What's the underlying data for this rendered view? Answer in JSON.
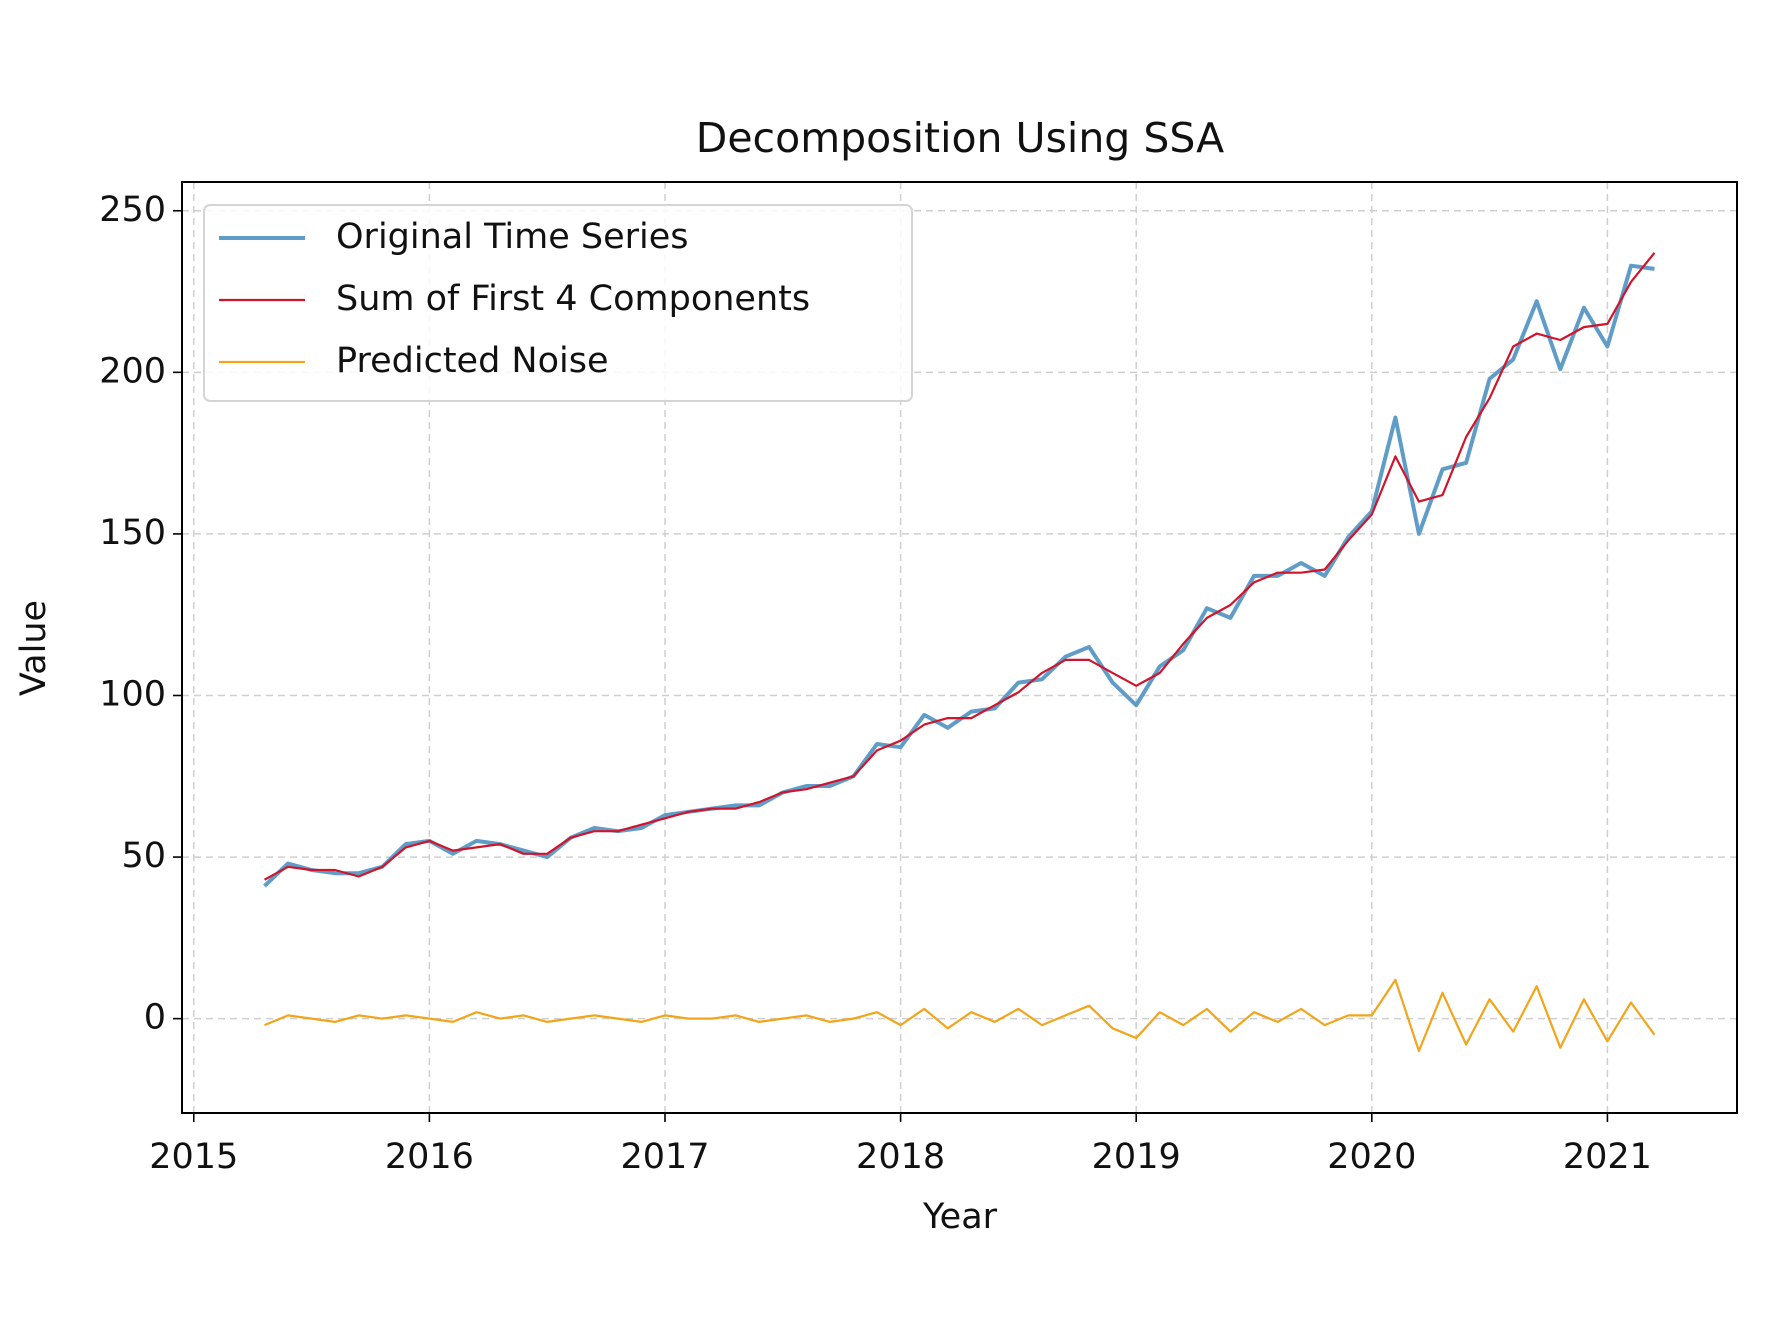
{
  "chart_data": {
    "type": "line",
    "title": "Decomposition Using SSA",
    "x_label": "Year",
    "y_label": "Value",
    "x": [
      2015.3,
      2015.4,
      2015.5,
      2015.6,
      2015.7,
      2015.8,
      2015.9,
      2016.0,
      2016.1,
      2016.2,
      2016.3,
      2016.4,
      2016.5,
      2016.6,
      2016.7,
      2016.8,
      2016.9,
      2017.0,
      2017.1,
      2017.2,
      2017.3,
      2017.4,
      2017.5,
      2017.6,
      2017.7,
      2017.8,
      2017.9,
      2018.0,
      2018.1,
      2018.2,
      2018.3,
      2018.4,
      2018.5,
      2018.6,
      2018.7,
      2018.8,
      2018.9,
      2019.0,
      2019.1,
      2019.2,
      2019.3,
      2019.4,
      2019.5,
      2019.6,
      2019.7,
      2019.8,
      2019.9,
      2020.0,
      2020.1,
      2020.2,
      2020.3,
      2020.4,
      2020.5,
      2020.6,
      2020.7,
      2020.8,
      2020.9,
      2021.0,
      2021.1,
      2021.2
    ],
    "series": [
      {
        "name": "Original Time Series",
        "color": "#5f9dc8",
        "width": 4,
        "values": [
          41,
          48,
          46,
          45,
          45,
          47,
          54,
          55,
          51,
          55,
          54,
          52,
          50,
          56,
          59,
          58,
          59,
          63,
          64,
          65,
          66,
          66,
          70,
          72,
          72,
          75,
          85,
          84,
          94,
          90,
          95,
          96,
          104,
          105,
          112,
          115,
          104,
          97,
          109,
          114,
          127,
          124,
          137,
          137,
          141,
          137,
          149,
          157,
          186,
          150,
          170,
          172,
          198,
          204,
          222,
          201,
          220,
          208,
          233,
          232
        ]
      },
      {
        "name": "Sum of First 4 Components",
        "color": "#d0142c",
        "width": 2.2,
        "values": [
          43,
          47,
          46,
          46,
          44,
          47,
          53,
          55,
          52,
          53,
          54,
          51,
          51,
          56,
          58,
          58,
          60,
          62,
          64,
          65,
          65,
          67,
          70,
          71,
          73,
          75,
          83,
          86,
          91,
          93,
          93,
          97,
          101,
          107,
          111,
          111,
          107,
          103,
          107,
          116,
          124,
          128,
          135,
          138,
          138,
          139,
          148,
          156,
          174,
          160,
          162,
          180,
          192,
          208,
          212,
          210,
          214,
          215,
          228,
          237
        ]
      },
      {
        "name": "Predicted Noise",
        "color": "#f2a51a",
        "width": 2.2,
        "values": [
          -2,
          1,
          0,
          -1,
          1,
          0,
          1,
          0,
          -1,
          2,
          0,
          1,
          -1,
          0,
          1,
          0,
          -1,
          1,
          0,
          0,
          1,
          -1,
          0,
          1,
          -1,
          0,
          2,
          -2,
          3,
          -3,
          2,
          -1,
          3,
          -2,
          1,
          4,
          -3,
          -6,
          2,
          -2,
          3,
          -4,
          2,
          -1,
          3,
          -2,
          1,
          1,
          12,
          -10,
          8,
          -8,
          6,
          -4,
          10,
          -9,
          6,
          -7,
          5,
          -5
        ]
      }
    ],
    "xlim": [
      2014.95,
      2021.55
    ],
    "ylim": [
      -29.2,
      258.9
    ],
    "xticks": [
      2015,
      2016,
      2017,
      2018,
      2019,
      2020,
      2021
    ],
    "yticks": [
      0,
      50,
      100,
      150,
      200,
      250
    ],
    "grid": true,
    "legend": "upper left"
  }
}
